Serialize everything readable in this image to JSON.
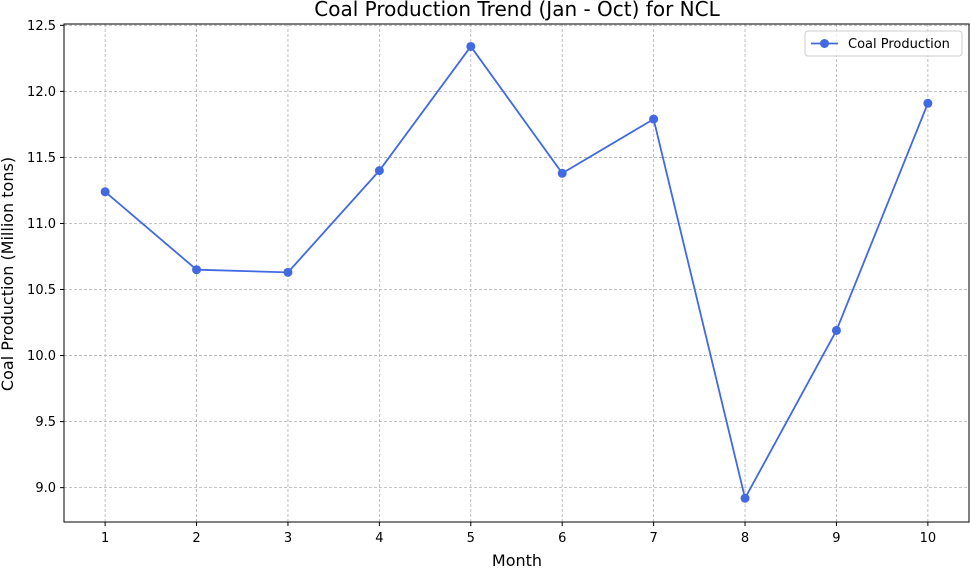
{
  "chart_data": {
    "type": "line",
    "title": "Coal Production Trend (Jan - Oct) for NCL",
    "xlabel": "Month",
    "ylabel": "Coal Production (Million tons)",
    "x": [
      1,
      2,
      3,
      4,
      5,
      6,
      7,
      8,
      9,
      10
    ],
    "xticks": [
      "1",
      "2",
      "3",
      "4",
      "5",
      "6",
      "7",
      "8",
      "9",
      "10"
    ],
    "yticks": [
      "9.0",
      "9.5",
      "10.0",
      "10.5",
      "11.0",
      "11.5",
      "12.0",
      "12.5"
    ],
    "ytick_values": [
      9.0,
      9.5,
      10.0,
      10.5,
      11.0,
      11.5,
      12.0,
      12.5
    ],
    "xlim": [
      0.55,
      10.45
    ],
    "ylim": [
      8.74,
      12.51
    ],
    "grid": true,
    "legend_position": "top-right",
    "series": [
      {
        "name": "Coal Production",
        "color": "#4169e1",
        "marker": "circle",
        "values": [
          11.24,
          10.65,
          10.63,
          11.4,
          12.34,
          11.38,
          11.79,
          8.92,
          10.19,
          11.91
        ]
      }
    ]
  }
}
